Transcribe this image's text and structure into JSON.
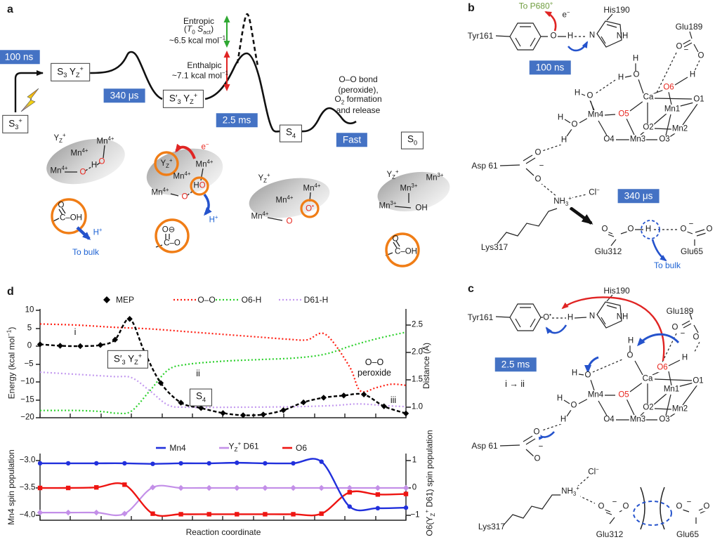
{
  "panels": {
    "a": "a",
    "b": "b",
    "c": "c",
    "d": "d"
  },
  "badges": {
    "ns": "100 ns",
    "us": "340 μs",
    "ms": "2.5 ms",
    "fast": "Fast"
  },
  "states": {
    "s3p": "S<sub>3</sub><sup>+</sup>",
    "s3yz": "S<sub>3</sub> Y<sub>Z</sub><sup>+</sup>",
    "s3pyz": "S′<sub>3</sub> Y<sub>Z</sub><sup>+</sup>",
    "s4": "S<sub>4</sub>",
    "s0": "S<sub>0</sub>"
  },
  "tok": {
    "O": "O",
    "H": "H",
    "N": "N",
    "NH": "NH",
    "OH": "OH",
    "Ca": "Ca",
    "Mn1": "Mn1",
    "Mn2": "Mn2",
    "Mn3": "Mn3",
    "Mn4": "Mn4",
    "O1": "O1",
    "O2": "O2",
    "O3": "O3",
    "O4": "O4",
    "O5": "O5",
    "O6": "O6",
    "minus": "−",
    "mn4p": "Mn<sup>4+</sup>",
    "mn3p": "Mn<sup>3+</sup>",
    "yz": "Y<sub>Z</sub><sup>+</sup>",
    "hp": "H<sup>+</sup>",
    "em": "e<sup>−</sup>",
    "cl": "Cl<sup>−</sup>",
    "nh3": "NH<sub>3</sub><sup>+</sup>",
    "odot": "O<sup>•</sup>",
    "tyr": "Tyr161",
    "his": "His190",
    "glu189": "Glu189",
    "glu312": "Glu312",
    "glu65": "Glu65",
    "asp": "Asp 61",
    "lys": "Lys317",
    "tobulk": "To bulk"
  },
  "a": {
    "entropic1": "Entropic",
    "entropic2": "(<em>T</em><sub>0</sub> <em>S</em><sub>act</sub>)",
    "entropic3": "~6.5 kcal mol<sup>−1</sup>",
    "enthalpic1": "Enthalpic",
    "enthalpic2": "~7.1 kcal mol<sup>−1</sup>",
    "oo1": "O–O bond",
    "oo2": "(peroxide),",
    "oo3": "O<sub>2</sub> formation",
    "oo4": "and release",
    "coh": "C–OH",
    "co": "C–O",
    "ominus": "O⊖",
    "ho": "H<i>O</i>"
  },
  "b": {
    "p680": "To P680<sup>+</sup>"
  },
  "c": {
    "i_ii": "i → ii"
  },
  "d": {
    "xlabel": "Reaction coordinate",
    "ylab_energy": "Energy (kcal mol<sup>−1</sup>)",
    "ylab_distance": "Distance (Å)",
    "ylab_spin_left": "Mn4 spin population",
    "ylab_spin_right": "O6(Y<sub>Z</sub><sup>+</sup> D61) spin population",
    "leg": {
      "mep": "MEP",
      "oo": "O–O",
      "o6h": "O6-H",
      "d61h": "D61-H",
      "mn4": "Mn4",
      "yzd61": "Y<sub>Z</sub><sup>+</sup> D61",
      "o6": "O6"
    },
    "ann": {
      "i": "i",
      "ii": "ii",
      "iii": "iii",
      "oo1": "O–O",
      "oo2": "peroxide"
    }
  },
  "colors": {
    "badge_blue": "#4472c4",
    "atom_red": "#e8251d",
    "arrow_blue": "#2553cc",
    "arrow_red": "#e02423",
    "arrow_green": "#2fa832",
    "orange_circle": "#f07d16",
    "text_green": "#6f9d3f",
    "text_blue": "#2064d4"
  },
  "chart_data": [
    {
      "plot": "p1",
      "type": "line",
      "title": "",
      "xlabel": "",
      "x_range": [
        0,
        1
      ],
      "x_ticks": 13,
      "grid": false,
      "ylabel_left": "Energy (kcal mol−1)",
      "ylim_left": [
        -20,
        10
      ],
      "yticks_left": [
        "10",
        "5",
        "0",
        "−5",
        "−10",
        "−15",
        "−20"
      ],
      "ylabel_right": "Distance (Å)",
      "ylim_right": [
        0.85,
        2.7
      ],
      "yticks_right": [
        "2.5",
        "2.0",
        "1.5",
        "1.0"
      ],
      "legend_position": "top",
      "annotations": [
        "i",
        "S′3 YZ+",
        "ii",
        "S4",
        "O–O peroxide",
        "iii"
      ],
      "series": [
        {
          "name": "O–O",
          "axis": "right",
          "color": "#ff1f13",
          "dash": "2,3",
          "width": 2.2,
          "marker": null,
          "x": [
            0,
            0.1,
            0.2,
            0.3,
            0.4,
            0.5,
            0.6,
            0.68,
            0.73,
            0.78,
            0.845,
            0.875,
            0.92,
            0.96,
            1
          ],
          "y": [
            2.52,
            2.5,
            2.46,
            2.43,
            2.38,
            2.33,
            2.28,
            2.24,
            2.23,
            2.33,
            1.75,
            1.3,
            1.36,
            1.42,
            1.4
          ]
        },
        {
          "name": "O6-H",
          "axis": "right",
          "color": "#2ed12e",
          "dash": "2,3",
          "width": 2.2,
          "marker": null,
          "x": [
            0,
            0.1,
            0.17,
            0.21,
            0.25,
            0.3,
            0.35,
            0.4,
            0.5,
            0.6,
            0.7,
            0.78,
            0.85,
            0.92,
            1
          ],
          "y": [
            0.94,
            0.94,
            0.92,
            0.89,
            0.93,
            1.3,
            1.68,
            1.78,
            1.84,
            1.87,
            1.9,
            1.97,
            2.12,
            2.25,
            2.37
          ]
        },
        {
          "name": "D61-H",
          "axis": "right",
          "color": "#c49bef",
          "dash": "2,3",
          "width": 2.2,
          "marker": null,
          "x": [
            0,
            0.1,
            0.2,
            0.25,
            0.3,
            0.35,
            0.4,
            0.55,
            0.7,
            0.8,
            0.87,
            0.94,
            1
          ],
          "y": [
            1.64,
            1.6,
            1.56,
            1.54,
            1.3,
            1.04,
            1.0,
            1.0,
            1.01,
            1.03,
            1.06,
            1.03,
            1.01
          ]
        },
        {
          "name": "MEP",
          "axis": "left",
          "color": "#000000",
          "dash": "5,3",
          "width": 2.4,
          "marker": "diamond",
          "no_marker": [
            6
          ],
          "x": [
            0,
            0.055,
            0.11,
            0.165,
            0.205,
            0.245,
            0.285,
            0.33,
            0.385,
            0.44,
            0.5,
            0.555,
            0.61,
            0.665,
            0.72,
            0.775,
            0.83,
            0.885,
            0.94,
            1
          ],
          "y": [
            0.5,
            0.1,
            0.0,
            0.3,
            1.8,
            7.6,
            -1.5,
            -10.3,
            -15.8,
            -17.3,
            -18.7,
            -19.3,
            -19.1,
            -17.9,
            -15.7,
            -14.4,
            -13.8,
            -13.5,
            -16.8,
            -18.8
          ]
        }
      ]
    },
    {
      "plot": "p2",
      "type": "line",
      "title": "",
      "xlabel": "Reaction coordinate",
      "x_range": [
        0,
        1
      ],
      "x_ticks": 13,
      "grid": false,
      "ylabel_left": "Mn4 spin population",
      "ylim_left": [
        -4.1,
        -2.9
      ],
      "yticks_left": [
        "−3.0",
        "−3.5",
        "−4.0"
      ],
      "ylabel_right": "O6(YZ+ D61) spin population",
      "ylim_right": [
        -1.15,
        1.15
      ],
      "yticks_right": [
        "1",
        "0",
        "−1"
      ],
      "legend_position": "top",
      "series": [
        {
          "name": "YZ+ D61",
          "axis": "right",
          "color": "#c38fe8",
          "width": 2.2,
          "marker": "diamond",
          "x": [
            0,
            0.077,
            0.154,
            0.231,
            0.308,
            0.385,
            0.462,
            0.538,
            0.615,
            0.692,
            0.769,
            0.846,
            0.923,
            1
          ],
          "y": [
            -0.9,
            -0.9,
            -0.9,
            -0.94,
            0.02,
            0,
            0,
            0,
            0,
            0,
            0,
            0,
            0,
            0
          ]
        },
        {
          "name": "O6",
          "axis": "right",
          "color": "#ee1512",
          "width": 2.4,
          "marker": "square",
          "x": [
            0,
            0.077,
            0.154,
            0.231,
            0.308,
            0.385,
            0.462,
            0.538,
            0.615,
            0.692,
            0.769,
            0.846,
            0.923,
            1
          ],
          "y": [
            0,
            0,
            0.02,
            0.12,
            -0.94,
            -0.96,
            -0.96,
            -0.96,
            -0.96,
            -0.96,
            -0.94,
            -0.16,
            -0.24,
            -0.22
          ]
        },
        {
          "name": "Mn4",
          "axis": "left",
          "color": "#2130dc",
          "width": 2.4,
          "marker": "circle",
          "x": [
            0,
            0.077,
            0.154,
            0.231,
            0.308,
            0.385,
            0.462,
            0.538,
            0.615,
            0.692,
            0.769,
            0.846,
            0.923,
            1
          ],
          "y": [
            -3.05,
            -3.05,
            -3.05,
            -3.05,
            -3.06,
            -3.05,
            -3.05,
            -3.04,
            -3.05,
            -3.05,
            -3.02,
            -3.84,
            -3.87,
            -3.86
          ]
        }
      ]
    }
  ]
}
